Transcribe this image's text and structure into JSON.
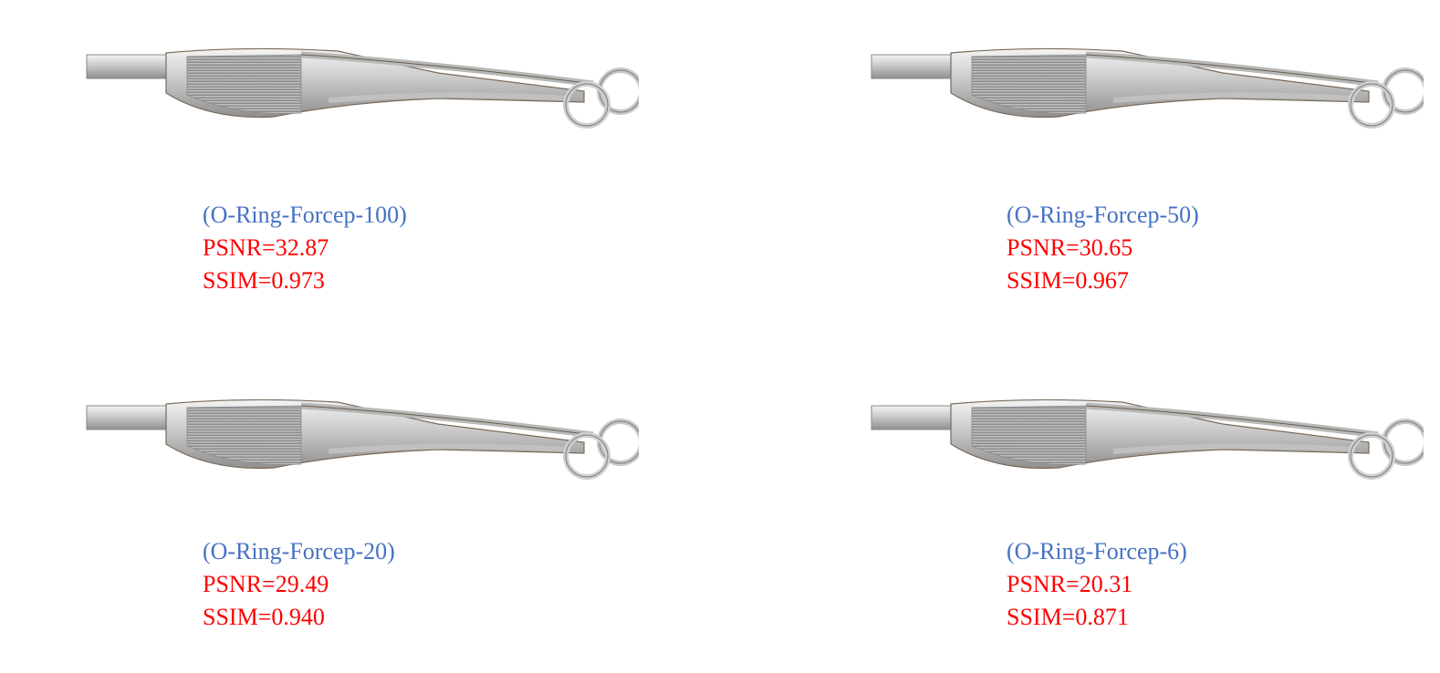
{
  "panels": [
    {
      "name": "(O-Ring-Forcep-100)",
      "psnr_label": "PSNR=",
      "psnr_value": "32.87",
      "ssim_label": "SSIM=",
      "ssim_value": "0.973",
      "image": "forcep-photo"
    },
    {
      "name": "(O-Ring-Forcep-50)",
      "psnr_label": "PSNR=",
      "psnr_value": "30.65",
      "ssim_label": "SSIM=",
      "ssim_value": "0.967",
      "image": "forcep-photo"
    },
    {
      "name": "(O-Ring-Forcep-20)",
      "psnr_label": "PSNR=",
      "psnr_value": "29.49",
      "ssim_label": "SSIM=",
      "ssim_value": "0.940",
      "image": "forcep-photo"
    },
    {
      "name": "(O-Ring-Forcep-6)",
      "psnr_label": "PSNR=",
      "psnr_value": "20.31",
      "ssim_label": "SSIM=",
      "ssim_value": "0.871",
      "image": "forcep-photo"
    }
  ],
  "colors": {
    "name": "#4472c4",
    "metric": "#ff0000"
  }
}
